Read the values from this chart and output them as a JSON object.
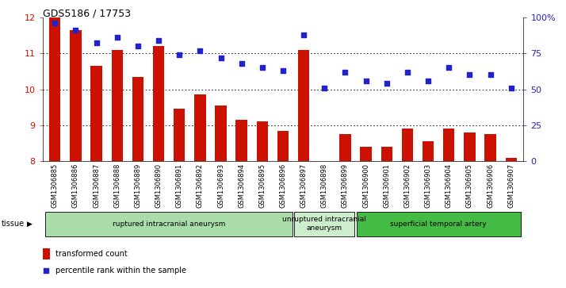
{
  "title": "GDS5186 / 17753",
  "samples": [
    "GSM1306885",
    "GSM1306886",
    "GSM1306887",
    "GSM1306888",
    "GSM1306889",
    "GSM1306890",
    "GSM1306891",
    "GSM1306892",
    "GSM1306893",
    "GSM1306894",
    "GSM1306895",
    "GSM1306896",
    "GSM1306897",
    "GSM1306898",
    "GSM1306899",
    "GSM1306900",
    "GSM1306901",
    "GSM1306902",
    "GSM1306903",
    "GSM1306904",
    "GSM1306905",
    "GSM1306906",
    "GSM1306907"
  ],
  "bar_values": [
    12.0,
    11.65,
    10.65,
    11.1,
    10.35,
    11.2,
    9.45,
    9.85,
    9.55,
    9.15,
    9.1,
    8.85,
    11.1,
    8.0,
    8.75,
    8.4,
    8.4,
    8.9,
    8.55,
    8.9,
    8.8,
    8.75,
    8.1
  ],
  "dot_values": [
    96,
    91,
    82,
    86,
    80,
    84,
    74,
    77,
    72,
    68,
    65,
    63,
    88,
    51,
    62,
    56,
    54,
    62,
    56,
    65,
    60,
    60,
    51
  ],
  "ylim_left": [
    8,
    12
  ],
  "ylim_right": [
    0,
    100
  ],
  "yticks_left": [
    8,
    9,
    10,
    11,
    12
  ],
  "yticks_right": [
    0,
    25,
    50,
    75,
    100
  ],
  "ytick_labels_right": [
    "0",
    "25",
    "50",
    "75",
    "100%"
  ],
  "bar_color": "#cc1100",
  "dot_color": "#2222cc",
  "background_color": "#ffffff",
  "plot_bg_color": "#ffffff",
  "groups": [
    {
      "label": "ruptured intracranial aneurysm",
      "start": 0,
      "end": 12,
      "color": "#aaddaa"
    },
    {
      "label": "unruptured intracranial\naneurysm",
      "start": 12,
      "end": 15,
      "color": "#cceecc"
    },
    {
      "label": "superficial temporal artery",
      "start": 15,
      "end": 23,
      "color": "#44bb44"
    }
  ],
  "tissue_label": "tissue",
  "legend_bar_label": "transformed count",
  "legend_dot_label": "percentile rank within the sample",
  "axis_label_color_left": "#cc1100",
  "axis_label_color_right": "#2222cc"
}
